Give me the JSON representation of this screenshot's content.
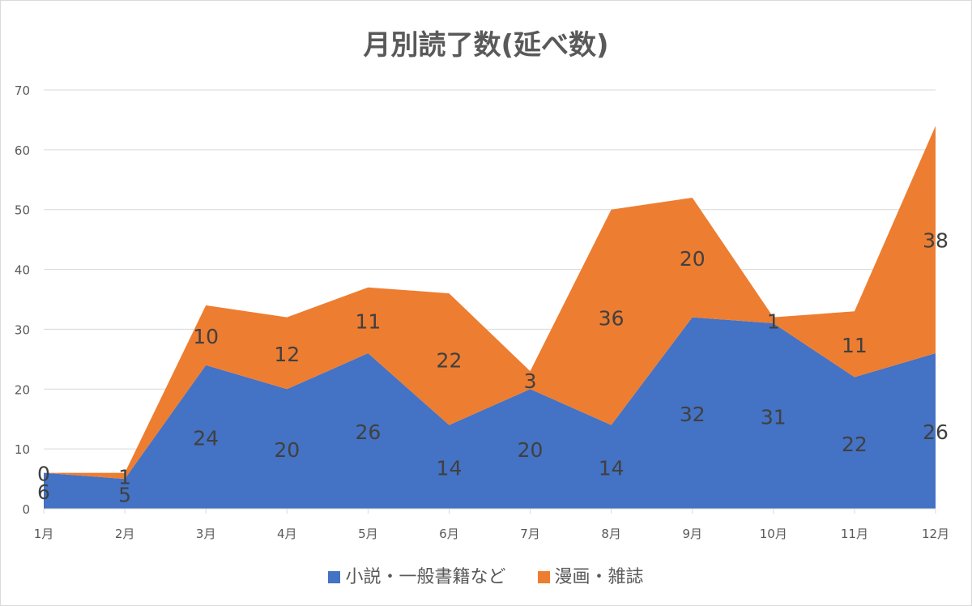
{
  "chart_data": {
    "type": "area",
    "stacked": true,
    "title": "月別読了数(延べ数)",
    "categories": [
      "1月",
      "2月",
      "3月",
      "4月",
      "5月",
      "6月",
      "7月",
      "8月",
      "9月",
      "10月",
      "11月",
      "12月"
    ],
    "series": [
      {
        "name": "小説・一般書籍など",
        "color": "#4472C4",
        "values": [
          6,
          5,
          24,
          20,
          26,
          14,
          20,
          14,
          32,
          31,
          22,
          26
        ]
      },
      {
        "name": "漫画・雑誌",
        "color": "#ED7D31",
        "values": [
          0,
          1,
          10,
          12,
          11,
          22,
          3,
          36,
          20,
          1,
          11,
          38
        ]
      }
    ],
    "ylim": [
      0,
      70
    ],
    "yticks": [
      0,
      10,
      20,
      30,
      40,
      50,
      60,
      70
    ],
    "grid": true,
    "legend_position": "bottom",
    "data_labels": true
  }
}
